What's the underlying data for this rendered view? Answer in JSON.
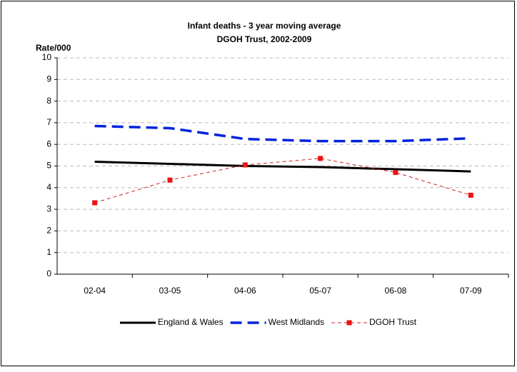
{
  "chart_data": {
    "type": "line",
    "title": "Infant deaths - 3 year moving average",
    "subtitle": "DGOH Trust, 2002-2009",
    "y_label": "Rate/000",
    "categories": [
      "02-04",
      "03-05",
      "04-06",
      "05-07",
      "06-08",
      "07-09"
    ],
    "series": [
      {
        "name": "England & Wales",
        "color": "#000000",
        "line_style": "solid",
        "line_width": 3,
        "marker": "none",
        "values": [
          5.2,
          5.1,
          5.0,
          4.95,
          4.85,
          4.75
        ]
      },
      {
        "name": "West Midlands",
        "color": "#0022dd",
        "line_style": "dashed",
        "line_width": 3.5,
        "marker": "none",
        "values": [
          6.85,
          6.75,
          6.25,
          6.15,
          6.15,
          6.28
        ]
      },
      {
        "name": "DGOH Trust",
        "color": "#cc2222",
        "line_style": "dashed",
        "line_width": 1,
        "marker": "square",
        "values": [
          3.3,
          4.35,
          5.05,
          5.35,
          4.7,
          3.65
        ]
      }
    ],
    "ylim": [
      0,
      10
    ],
    "yticks": [
      0,
      1,
      2,
      3,
      4,
      5,
      6,
      7,
      8,
      9,
      10
    ],
    "grid": true,
    "legend": "bottom"
  }
}
